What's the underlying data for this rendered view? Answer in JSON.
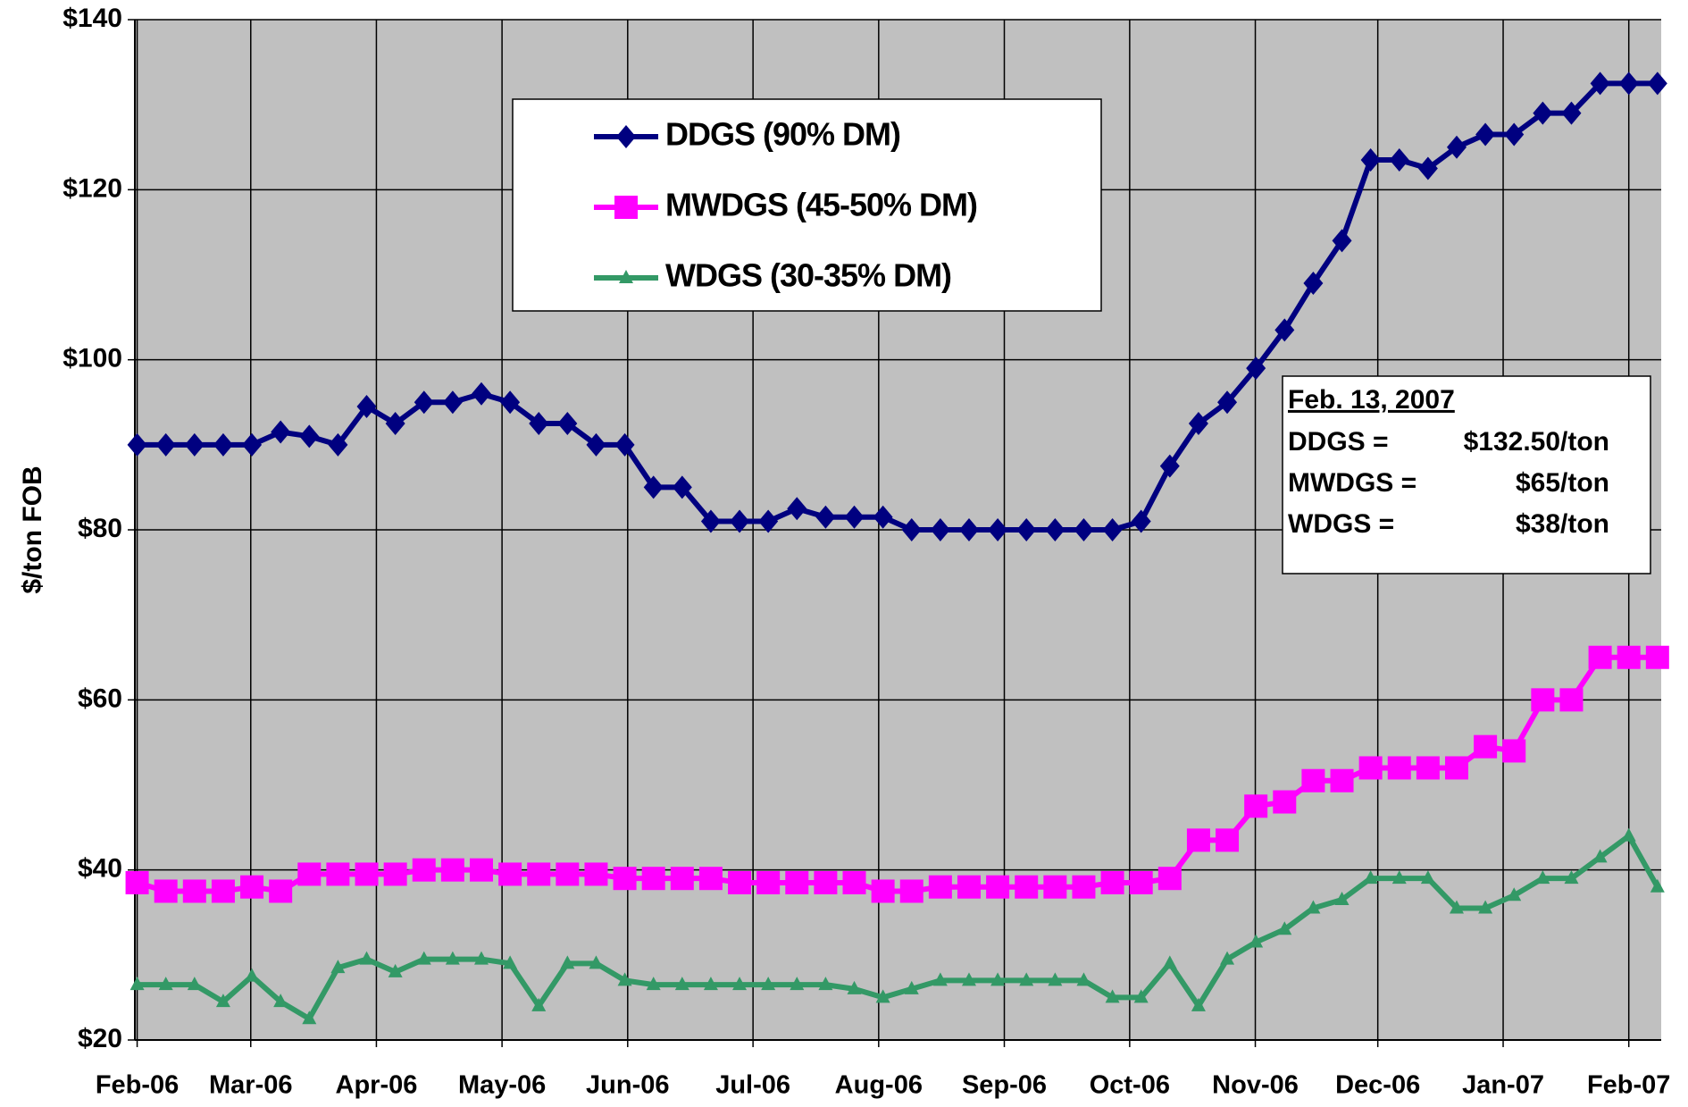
{
  "chart_data": {
    "type": "line",
    "ylabel": "$/ton FOB",
    "ylim": [
      20,
      140
    ],
    "yticks": [
      {
        "value": 20,
        "label": "$20"
      },
      {
        "value": 40,
        "label": "$40"
      },
      {
        "value": 60,
        "label": "$60"
      },
      {
        "value": 80,
        "label": "$80"
      },
      {
        "value": 100,
        "label": "$100"
      },
      {
        "value": 120,
        "label": "$120"
      },
      {
        "value": 140,
        "label": "$140"
      }
    ],
    "xlim": [
      -0.08,
      53.13
    ],
    "xticks": [
      {
        "value": 0,
        "label": "Feb-06"
      },
      {
        "value": 3.96,
        "label": "Mar-06"
      },
      {
        "value": 8.34,
        "label": "Apr-06"
      },
      {
        "value": 12.72,
        "label": "May-06"
      },
      {
        "value": 17.1,
        "label": "Jun-06"
      },
      {
        "value": 21.47,
        "label": "Jul-06"
      },
      {
        "value": 25.85,
        "label": "Aug-06"
      },
      {
        "value": 30.23,
        "label": "Sep-06"
      },
      {
        "value": 34.6,
        "label": "Oct-06"
      },
      {
        "value": 38.98,
        "label": "Nov-06"
      },
      {
        "value": 43.25,
        "label": "Dec-06"
      },
      {
        "value": 47.62,
        "label": "Jan-07"
      },
      {
        "value": 52.0,
        "label": "Feb-07"
      }
    ],
    "grid": true,
    "background": "#c0c0c0",
    "series": [
      {
        "name": "DDGS (90% DM)",
        "color": "#000080",
        "marker": "diamond",
        "values": [
          90,
          90,
          90,
          90,
          90,
          91.5,
          91,
          90,
          94.5,
          92.5,
          95,
          95,
          96,
          95,
          92.5,
          92.5,
          90,
          90,
          85,
          85,
          81,
          81,
          81,
          82.5,
          81.5,
          81.5,
          81.5,
          80,
          80,
          80,
          80,
          80,
          80,
          80,
          80,
          81,
          87.5,
          92.5,
          95,
          99,
          103.5,
          109,
          114,
          123.5,
          123.5,
          122.5,
          125,
          126.5,
          126.5,
          129,
          129,
          132.5,
          132.5,
          132.5
        ]
      },
      {
        "name": "MWDGS (45-50% DM)",
        "color": "#ff00ff",
        "marker": "square",
        "values": [
          38.5,
          37.5,
          37.5,
          37.5,
          38,
          37.5,
          39.5,
          39.5,
          39.5,
          39.5,
          40,
          40,
          40,
          39.5,
          39.5,
          39.5,
          39.5,
          39,
          39,
          39,
          39,
          38.5,
          38.5,
          38.5,
          38.5,
          38.5,
          37.5,
          37.5,
          38,
          38,
          38,
          38,
          38,
          38,
          38.5,
          38.5,
          39,
          43.5,
          43.5,
          47.5,
          48,
          50.5,
          50.5,
          52,
          52,
          52,
          52,
          54.5,
          54,
          60,
          60,
          65,
          65,
          65
        ]
      },
      {
        "name": "WDGS (30-35% DM)",
        "color": "#339966",
        "marker": "triangle",
        "values": [
          26.5,
          26.5,
          26.5,
          24.5,
          27.5,
          24.5,
          22.5,
          28.5,
          29.5,
          28,
          29.5,
          29.5,
          29.5,
          29,
          24,
          29,
          29,
          27,
          26.5,
          26.5,
          26.5,
          26.5,
          26.5,
          26.5,
          26.5,
          26,
          25,
          26,
          27,
          27,
          27,
          27,
          27,
          27,
          25,
          25,
          29,
          24,
          29.5,
          31.5,
          33,
          35.5,
          36.5,
          39,
          39,
          39,
          35.5,
          35.5,
          37,
          39,
          39,
          41.5,
          44,
          38
        ]
      }
    ],
    "annotation": {
      "title": "Feb. 13, 2007",
      "rows": [
        [
          "DDGS =",
          "$132.50/ton"
        ],
        [
          "MWDGS =",
          "$65/ton"
        ],
        [
          "WDGS =",
          "$38/ton"
        ]
      ]
    }
  }
}
